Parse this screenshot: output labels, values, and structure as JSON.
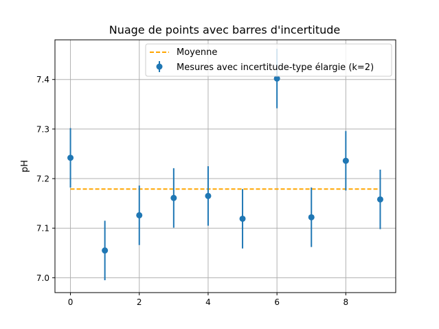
{
  "chart_data": {
    "type": "scatter",
    "title": "Nuage de points avec barres d'incertitude",
    "xlabel": "",
    "ylabel": "pH",
    "xlim": [
      -0.45,
      9.45
    ],
    "ylim": [
      6.97,
      7.48
    ],
    "xticks": [
      0,
      2,
      4,
      6,
      8
    ],
    "yticks": [
      7.0,
      7.1,
      7.2,
      7.3,
      7.4
    ],
    "xtick_labels": [
      "0",
      "2",
      "4",
      "6",
      "8"
    ],
    "ytick_labels": [
      "7.0",
      "7.1",
      "7.2",
      "7.3",
      "7.4"
    ],
    "grid": true,
    "legend_position": "top-right",
    "series": [
      {
        "name": "Mesures avec incertitude-type élargie (k=2)",
        "kind": "errorbar",
        "color": "#1f77b4",
        "x": [
          0,
          1,
          2,
          3,
          4,
          5,
          6,
          7,
          8,
          9
        ],
        "y": [
          7.242,
          7.055,
          7.126,
          7.161,
          7.165,
          7.119,
          7.402,
          7.122,
          7.236,
          7.158
        ],
        "yerr": 0.06
      },
      {
        "name": "Moyenne",
        "kind": "hline",
        "color": "#ffa500",
        "linestyle": "dashed",
        "x": [
          0,
          9
        ],
        "y": 7.179
      }
    ]
  }
}
